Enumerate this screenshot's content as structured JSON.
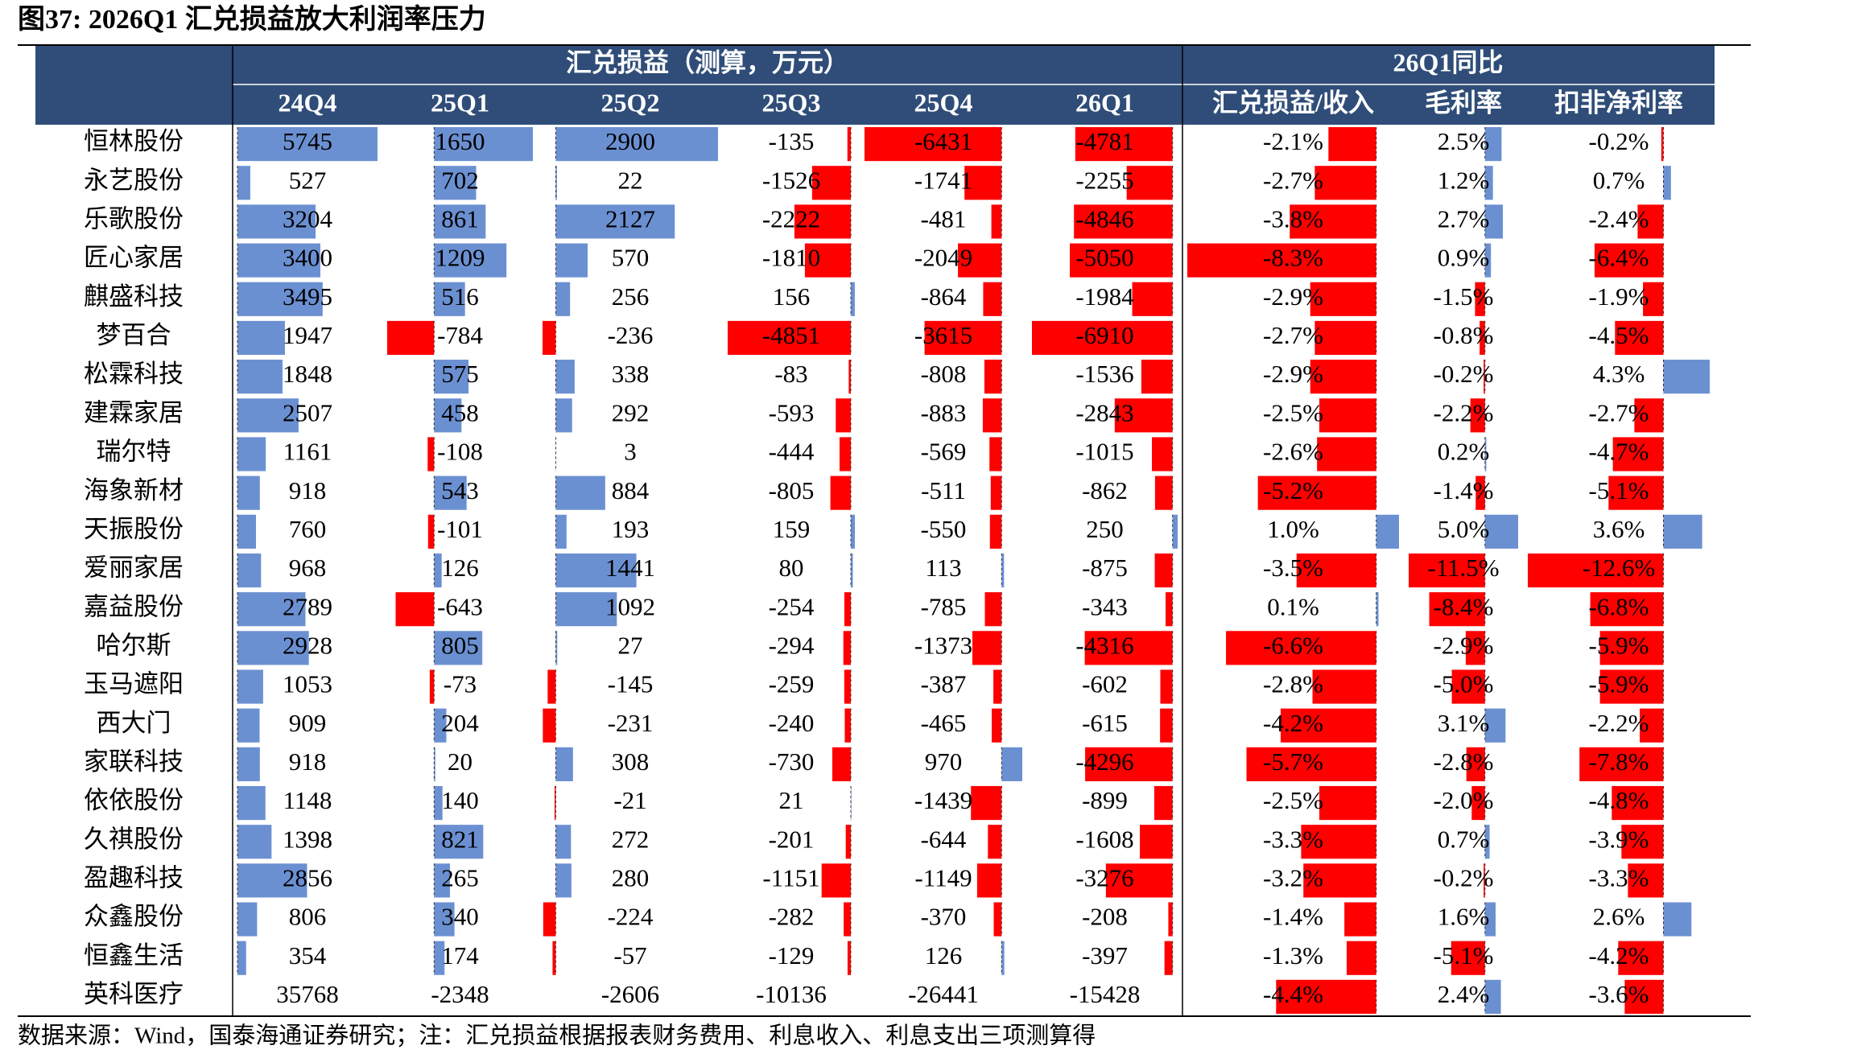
{
  "title": "图37:  2026Q1 汇兑损益放大利润率压力",
  "header": {
    "group1": "汇兑损益（测算，万元）",
    "group2": "26Q1同比",
    "columns": [
      "24Q4",
      "25Q1",
      "25Q2",
      "25Q3",
      "25Q4",
      "26Q1",
      "汇兑损益/收入",
      "毛利率",
      "扣非净利率"
    ]
  },
  "rows": [
    {
      "name": "恒林股份",
      "values": [
        5745,
        1650,
        2900,
        -135,
        -6431,
        -4781
      ],
      "ratios": [
        "-2.1%",
        "2.5%",
        "-0.2%"
      ]
    },
    {
      "name": "永艺股份",
      "values": [
        527,
        702,
        22,
        -1526,
        -1741,
        -2255
      ],
      "ratios": [
        "-2.7%",
        "1.2%",
        "0.7%"
      ]
    },
    {
      "name": "乐歌股份",
      "values": [
        3204,
        861,
        2127,
        -2222,
        -481,
        -4846
      ],
      "ratios": [
        "-3.8%",
        "2.7%",
        "-2.4%"
      ]
    },
    {
      "name": "匠心家居",
      "values": [
        3400,
        1209,
        570,
        -1810,
        -2049,
        -5050
      ],
      "ratios": [
        "-8.3%",
        "0.9%",
        "-6.4%"
      ]
    },
    {
      "name": "麒盛科技",
      "values": [
        3495,
        516,
        256,
        156,
        -864,
        -1984
      ],
      "ratios": [
        "-2.9%",
        "-1.5%",
        "-1.9%"
      ]
    },
    {
      "name": "梦百合",
      "values": [
        1947,
        -784,
        -236,
        -4851,
        -3615,
        -6910
      ],
      "ratios": [
        "-2.7%",
        "-0.8%",
        "-4.5%"
      ]
    },
    {
      "name": "松霖科技",
      "values": [
        1848,
        575,
        338,
        -83,
        -808,
        -1536
      ],
      "ratios": [
        "-2.9%",
        "-0.2%",
        "4.3%"
      ]
    },
    {
      "name": "建霖家居",
      "values": [
        2507,
        458,
        292,
        -593,
        -883,
        -2843
      ],
      "ratios": [
        "-2.5%",
        "-2.2%",
        "-2.7%"
      ]
    },
    {
      "name": "瑞尔特",
      "values": [
        1161,
        -108,
        3,
        -444,
        -569,
        -1015
      ],
      "ratios": [
        "-2.6%",
        "0.2%",
        "-4.7%"
      ]
    },
    {
      "name": "海象新材",
      "values": [
        918,
        543,
        884,
        -805,
        -511,
        -862
      ],
      "ratios": [
        "-5.2%",
        "-1.4%",
        "-5.1%"
      ]
    },
    {
      "name": "天振股份",
      "values": [
        760,
        -101,
        193,
        159,
        -550,
        250
      ],
      "ratios": [
        "1.0%",
        "5.0%",
        "3.6%"
      ]
    },
    {
      "name": "爱丽家居",
      "values": [
        968,
        126,
        1441,
        80,
        113,
        -875
      ],
      "ratios": [
        "-3.5%",
        "-11.5%",
        "-12.6%"
      ]
    },
    {
      "name": "嘉益股份",
      "values": [
        2789,
        -643,
        1092,
        -254,
        -785,
        -343
      ],
      "ratios": [
        "0.1%",
        "-8.4%",
        "-6.8%"
      ]
    },
    {
      "name": "哈尔斯",
      "values": [
        2928,
        805,
        27,
        -294,
        -1373,
        -4316
      ],
      "ratios": [
        "-6.6%",
        "-2.9%",
        "-5.9%"
      ]
    },
    {
      "name": "玉马遮阳",
      "values": [
        1053,
        -73,
        -145,
        -259,
        -387,
        -602
      ],
      "ratios": [
        "-2.8%",
        "-5.0%",
        "-5.9%"
      ]
    },
    {
      "name": "西大门",
      "values": [
        909,
        204,
        -231,
        -240,
        -465,
        -615
      ],
      "ratios": [
        "-4.2%",
        "3.1%",
        "-2.2%"
      ]
    },
    {
      "name": "家联科技",
      "values": [
        918,
        20,
        308,
        -730,
        970,
        -4296
      ],
      "ratios": [
        "-5.7%",
        "-2.8%",
        "-7.8%"
      ]
    },
    {
      "name": "依依股份",
      "values": [
        1148,
        140,
        -21,
        21,
        -1439,
        -899
      ],
      "ratios": [
        "-2.5%",
        "-2.0%",
        "-4.8%"
      ]
    },
    {
      "name": "久祺股份",
      "values": [
        1398,
        821,
        272,
        -201,
        -644,
        -1608
      ],
      "ratios": [
        "-3.3%",
        "0.7%",
        "-3.9%"
      ]
    },
    {
      "name": "盈趣科技",
      "values": [
        2856,
        265,
        280,
        -1151,
        -1149,
        -3276
      ],
      "ratios": [
        "-3.2%",
        "-0.2%",
        "-3.3%"
      ]
    },
    {
      "name": "众鑫股份",
      "values": [
        806,
        340,
        -224,
        -282,
        -370,
        -208
      ],
      "ratios": [
        "-1.4%",
        "1.6%",
        "2.6%"
      ]
    },
    {
      "name": "恒鑫生活",
      "values": [
        354,
        174,
        -57,
        -129,
        126,
        -397
      ],
      "ratios": [
        "-1.3%",
        "-5.1%",
        "-4.2%"
      ]
    },
    {
      "name": "英科医疗",
      "values": [
        35768,
        -2348,
        -2606,
        -10136,
        -26441,
        -15428
      ],
      "ratios": [
        "-4.4%",
        "2.4%",
        "-3.6%"
      ]
    }
  ],
  "source": "数据来源：Wind，国泰海通证券研究；注：汇兑损益根据报表财务费用、利息收入、利息支出三项测算得"
}
